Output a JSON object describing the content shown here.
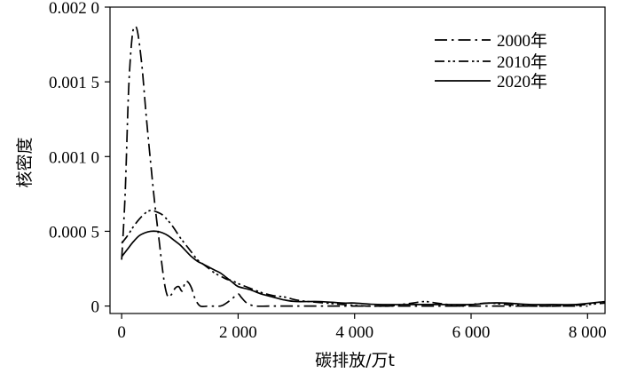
{
  "chart_data": {
    "type": "line",
    "xlabel": "碳排放/万t",
    "ylabel": "核密度",
    "xlim": [
      -200,
      8300
    ],
    "ylim": [
      -5e-05,
      0.002
    ],
    "x_ticks": [
      {
        "value": 0,
        "label": "0"
      },
      {
        "value": 2000,
        "label": "2 000"
      },
      {
        "value": 4000,
        "label": "4 000"
      },
      {
        "value": 6000,
        "label": "6 000"
      },
      {
        "value": 8000,
        "label": "8 000"
      }
    ],
    "y_ticks": [
      {
        "value": 0,
        "label": "0"
      },
      {
        "value": 0.0005,
        "label": "0.000 5"
      },
      {
        "value": 0.001,
        "label": "0.001 0"
      },
      {
        "value": 0.0015,
        "label": "0.001 5"
      },
      {
        "value": 0.002,
        "label": "0.002 0"
      }
    ],
    "legend_position": "top-right",
    "series": [
      {
        "name": "2000年",
        "dash": "dash-dot",
        "points": [
          [
            0,
            0.00031
          ],
          [
            60,
            0.00075
          ],
          [
            120,
            0.00145
          ],
          [
            180,
            0.0018
          ],
          [
            230,
            0.00187
          ],
          [
            280,
            0.00182
          ],
          [
            350,
            0.0016
          ],
          [
            420,
            0.00128
          ],
          [
            500,
            0.00095
          ],
          [
            570,
            0.00068
          ],
          [
            640,
            0.00045
          ],
          [
            700,
            0.00025
          ],
          [
            750,
            0.00012
          ],
          [
            800,
            6e-05
          ],
          [
            860,
            8e-05
          ],
          [
            920,
            0.00012
          ],
          [
            980,
            0.00013
          ],
          [
            1040,
            0.0001
          ],
          [
            1090,
            0.00016
          ],
          [
            1140,
            0.00016
          ],
          [
            1200,
            0.00012
          ],
          [
            1260,
            5e-05
          ],
          [
            1350,
            0.0
          ],
          [
            1500,
            0.0
          ],
          [
            1700,
            0.0
          ],
          [
            1800,
            2e-05
          ],
          [
            1900,
            5e-05
          ],
          [
            2000,
            8e-05
          ],
          [
            2050,
            6e-05
          ],
          [
            2150,
            2e-05
          ],
          [
            2300,
            0.0
          ],
          [
            2600,
            0.0
          ],
          [
            3000,
            0.0
          ],
          [
            3500,
            0.0
          ],
          [
            4000,
            0.0
          ],
          [
            5000,
            0.0
          ],
          [
            6000,
            0.0
          ],
          [
            7000,
            0.0
          ],
          [
            8000,
            0.0
          ]
        ]
      },
      {
        "name": "2010年",
        "dash": "dash-dot-dot",
        "points": [
          [
            0,
            0.00042
          ],
          [
            100,
            0.00047
          ],
          [
            200,
            0.00053
          ],
          [
            300,
            0.00058
          ],
          [
            400,
            0.00062
          ],
          [
            500,
            0.00064
          ],
          [
            600,
            0.00063
          ],
          [
            700,
            0.00061
          ],
          [
            800,
            0.00057
          ],
          [
            900,
            0.00052
          ],
          [
            1000,
            0.00046
          ],
          [
            1100,
            0.00041
          ],
          [
            1200,
            0.00036
          ],
          [
            1300,
            0.00031
          ],
          [
            1400,
            0.00028
          ],
          [
            1500,
            0.00025
          ],
          [
            1600,
            0.00022
          ],
          [
            1700,
            0.0002
          ],
          [
            1800,
            0.00018
          ],
          [
            1900,
            0.00017
          ],
          [
            2000,
            0.00015
          ],
          [
            2200,
            0.00012
          ],
          [
            2400,
            9e-05
          ],
          [
            2600,
            7e-05
          ],
          [
            2800,
            6e-05
          ],
          [
            3000,
            4e-05
          ],
          [
            3200,
            3e-05
          ],
          [
            3500,
            2e-05
          ],
          [
            3800,
            1e-05
          ],
          [
            4200,
            0.0
          ],
          [
            4600,
            0.0
          ],
          [
            4800,
            1e-05
          ],
          [
            5000,
            2e-05
          ],
          [
            5200,
            3e-05
          ],
          [
            5400,
            2e-05
          ],
          [
            5600,
            1e-05
          ],
          [
            5800,
            0.0
          ],
          [
            6000,
            1e-05
          ],
          [
            6300,
            2e-05
          ],
          [
            6600,
            1e-05
          ],
          [
            7000,
            0.0
          ],
          [
            7500,
            0.0
          ],
          [
            8000,
            1e-05
          ],
          [
            8300,
            2e-05
          ]
        ]
      },
      {
        "name": "2020年",
        "dash": "solid",
        "points": [
          [
            0,
            0.00033
          ],
          [
            100,
            0.00038
          ],
          [
            200,
            0.00043
          ],
          [
            300,
            0.00047
          ],
          [
            400,
            0.00049
          ],
          [
            500,
            0.0005
          ],
          [
            600,
            0.0005
          ],
          [
            700,
            0.00049
          ],
          [
            800,
            0.00047
          ],
          [
            900,
            0.00044
          ],
          [
            1000,
            0.00041
          ],
          [
            1100,
            0.00037
          ],
          [
            1200,
            0.00033
          ],
          [
            1300,
            0.0003
          ],
          [
            1400,
            0.00028
          ],
          [
            1500,
            0.00026
          ],
          [
            1600,
            0.00024
          ],
          [
            1700,
            0.00022
          ],
          [
            1800,
            0.00019
          ],
          [
            1900,
            0.00016
          ],
          [
            2000,
            0.00013
          ],
          [
            2200,
            0.00011
          ],
          [
            2400,
            8e-05
          ],
          [
            2600,
            6e-05
          ],
          [
            2800,
            4e-05
          ],
          [
            3000,
            3e-05
          ],
          [
            3400,
            3e-05
          ],
          [
            3800,
            2e-05
          ],
          [
            4000,
            2e-05
          ],
          [
            4400,
            1e-05
          ],
          [
            5000,
            1e-05
          ],
          [
            5500,
            1e-05
          ],
          [
            6000,
            1e-05
          ],
          [
            6300,
            2e-05
          ],
          [
            6600,
            2e-05
          ],
          [
            7000,
            1e-05
          ],
          [
            7400,
            1e-05
          ],
          [
            7800,
            1e-05
          ],
          [
            8300,
            3e-05
          ]
        ]
      }
    ]
  }
}
